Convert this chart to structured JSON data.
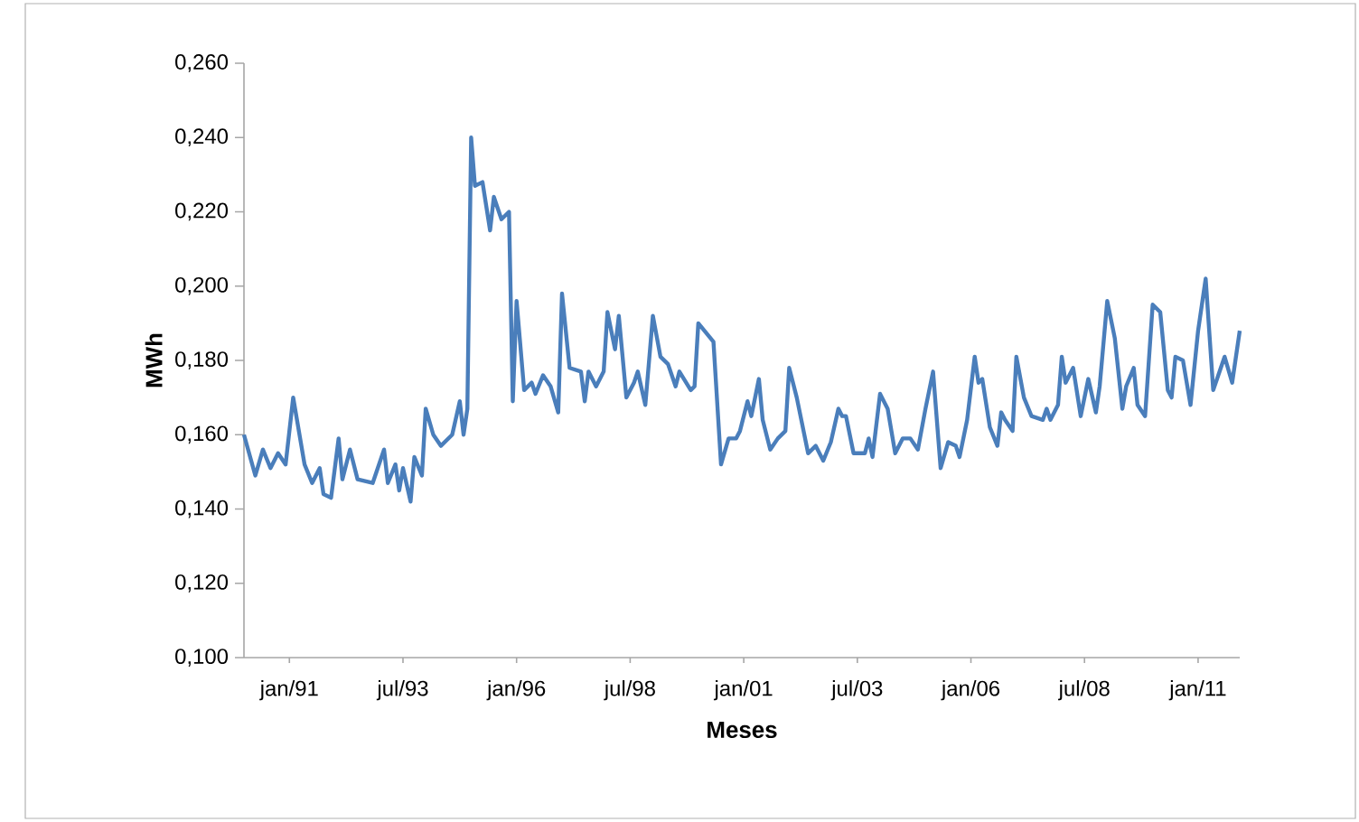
{
  "chart_data": {
    "type": "line",
    "xlabel": "Meses",
    "ylabel": "MWh",
    "x": [
      "1990-01",
      "1990-04",
      "1990-06",
      "1990-08",
      "1990-10",
      "1990-12",
      "1991-02",
      "1991-05",
      "1991-07",
      "1991-09",
      "1991-10",
      "1991-12",
      "1992-02",
      "1992-03",
      "1992-05",
      "1992-07",
      "1992-11",
      "1993-02",
      "1993-03",
      "1993-05",
      "1993-06",
      "1993-07",
      "1993-09",
      "1993-10",
      "1993-12",
      "1994-01",
      "1994-03",
      "1994-05",
      "1994-08",
      "1994-10",
      "1994-11",
      "1994-12",
      "1995-01",
      "1995-02",
      "1995-04",
      "1995-06",
      "1995-07",
      "1995-09",
      "1995-11",
      "1995-12",
      "1996-01",
      "1996-03",
      "1996-05",
      "1996-06",
      "1996-08",
      "1996-10",
      "1996-12",
      "1997-01",
      "1997-03",
      "1997-06",
      "1997-07",
      "1997-08",
      "1997-10",
      "1997-12",
      "1998-01",
      "1998-03",
      "1998-04",
      "1998-06",
      "1998-08",
      "1998-09",
      "1998-11",
      "1999-01",
      "1999-03",
      "1999-05",
      "1999-07",
      "1999-08",
      "1999-11",
      "1999-12",
      "2000-01",
      "2000-05",
      "2000-07",
      "2000-09",
      "2000-11",
      "2000-12",
      "2001-02",
      "2001-03",
      "2001-05",
      "2001-06",
      "2001-08",
      "2001-10",
      "2001-12",
      "2002-01",
      "2002-03",
      "2002-06",
      "2002-08",
      "2002-10",
      "2002-12",
      "2003-02",
      "2003-03",
      "2003-04",
      "2003-06",
      "2003-09",
      "2003-10",
      "2003-11",
      "2004-01",
      "2004-03",
      "2004-05",
      "2004-07",
      "2004-09",
      "2004-11",
      "2005-01",
      "2005-03",
      "2005-05",
      "2005-07",
      "2005-09",
      "2005-10",
      "2005-12",
      "2006-02",
      "2006-03",
      "2006-04",
      "2006-06",
      "2006-08",
      "2006-09",
      "2006-10",
      "2006-12",
      "2007-01",
      "2007-03",
      "2007-05",
      "2007-08",
      "2007-09",
      "2007-10",
      "2007-12",
      "2008-01",
      "2008-02",
      "2008-04",
      "2008-06",
      "2008-08",
      "2008-10",
      "2008-11",
      "2009-01",
      "2009-03",
      "2009-05",
      "2009-06",
      "2009-08",
      "2009-09",
      "2009-11",
      "2010-01",
      "2010-03",
      "2010-05",
      "2010-06",
      "2010-07",
      "2010-09",
      "2010-11",
      "2011-01",
      "2011-03",
      "2011-05",
      "2011-07",
      "2011-08",
      "2011-10",
      "2011-12"
    ],
    "series": [
      {
        "color": "#4a7ebb",
        "values": [
          0.16,
          0.149,
          0.156,
          0.151,
          0.155,
          0.152,
          0.17,
          0.152,
          0.147,
          0.151,
          0.144,
          0.143,
          0.159,
          0.148,
          0.156,
          0.148,
          0.147,
          0.156,
          0.147,
          0.152,
          0.145,
          0.151,
          0.142,
          0.154,
          0.149,
          0.167,
          0.16,
          0.157,
          0.16,
          0.169,
          0.16,
          0.167,
          0.24,
          0.227,
          0.228,
          0.215,
          0.224,
          0.218,
          0.22,
          0.169,
          0.196,
          0.172,
          0.174,
          0.171,
          0.176,
          0.173,
          0.166,
          0.198,
          0.178,
          0.177,
          0.169,
          0.177,
          0.173,
          0.177,
          0.193,
          0.183,
          0.192,
          0.17,
          0.174,
          0.177,
          0.168,
          0.192,
          0.181,
          0.179,
          0.173,
          0.177,
          0.172,
          0.173,
          0.19,
          0.185,
          0.152,
          0.159,
          0.159,
          0.161,
          0.169,
          0.165,
          0.175,
          0.164,
          0.156,
          0.159,
          0.161,
          0.178,
          0.17,
          0.155,
          0.157,
          0.153,
          0.158,
          0.167,
          0.165,
          0.165,
          0.155,
          0.155,
          0.159,
          0.154,
          0.171,
          0.167,
          0.155,
          0.159,
          0.159,
          0.156,
          0.167,
          0.177,
          0.151,
          0.158,
          0.157,
          0.154,
          0.164,
          0.181,
          0.174,
          0.175,
          0.162,
          0.157,
          0.166,
          0.164,
          0.161,
          0.181,
          0.17,
          0.165,
          0.164,
          0.167,
          0.164,
          0.168,
          0.181,
          0.174,
          0.178,
          0.165,
          0.175,
          0.166,
          0.173,
          0.196,
          0.186,
          0.167,
          0.173,
          0.178,
          0.168,
          0.165,
          0.195,
          0.193,
          0.172,
          0.17,
          0.181,
          0.18,
          0.168,
          0.188,
          0.202,
          0.172,
          0.178,
          0.181,
          0.174,
          0.188
        ]
      }
    ],
    "xlim": [
      "1990-01",
      "2011-12"
    ],
    "xticks": [
      {
        "value": "1991-01",
        "label": "jan/91"
      },
      {
        "value": "1993-07",
        "label": "jul/93"
      },
      {
        "value": "1996-01",
        "label": "jan/96"
      },
      {
        "value": "1998-07",
        "label": "jul/98"
      },
      {
        "value": "2001-01",
        "label": "jan/01"
      },
      {
        "value": "2003-07",
        "label": "jul/03"
      },
      {
        "value": "2006-01",
        "label": "jan/06"
      },
      {
        "value": "2008-07",
        "label": "jul/08"
      },
      {
        "value": "2011-01",
        "label": "jan/11"
      }
    ],
    "ylim": [
      0.1,
      0.26
    ],
    "yticks": [
      {
        "value": 0.1,
        "label": "0,100"
      },
      {
        "value": 0.12,
        "label": "0,120"
      },
      {
        "value": 0.14,
        "label": "0,140"
      },
      {
        "value": 0.16,
        "label": "0,160"
      },
      {
        "value": 0.18,
        "label": "0,180"
      },
      {
        "value": 0.2,
        "label": "0,200"
      },
      {
        "value": 0.22,
        "label": "0,220"
      },
      {
        "value": 0.24,
        "label": "0,240"
      },
      {
        "value": 0.26,
        "label": "0,260"
      }
    ],
    "grid": false,
    "marker": "none",
    "line_style": "solid"
  }
}
